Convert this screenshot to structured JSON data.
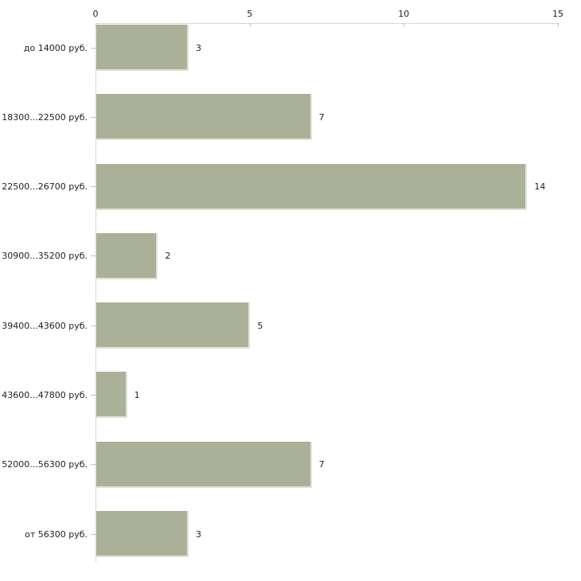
{
  "chart_data": {
    "type": "bar",
    "orientation": "horizontal",
    "title": "",
    "xlabel": "",
    "ylabel": "",
    "categories": [
      "до 14000 руб.",
      "18300...22500 руб.",
      "22500...26700 руб.",
      "30900...35200 руб.",
      "39400...43600 руб.",
      "43600...47800 руб.",
      "52000...56300 руб.",
      "от 56300 руб."
    ],
    "values": [
      3,
      7,
      14,
      2,
      5,
      1,
      7,
      3
    ],
    "xlim": [
      0,
      15
    ],
    "x_ticks": [
      "0",
      "5",
      "10",
      "15"
    ],
    "x_axis_position": "top",
    "grid": false,
    "legend": false,
    "colors": {
      "bar": "#abb198",
      "bar_edge": "#e0e2d6",
      "axis_line": "#d6d6d6",
      "tick": "#c2c6ae",
      "text": "#1f1f1f",
      "background": "#ffffff"
    }
  }
}
